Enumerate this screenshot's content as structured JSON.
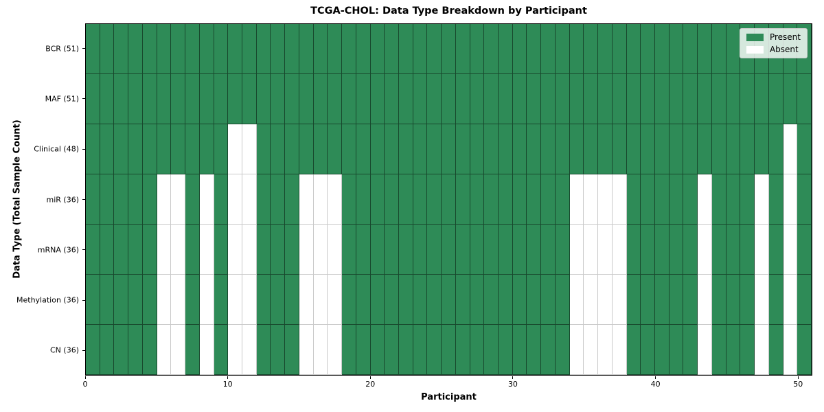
{
  "chart_data": {
    "type": "heatmap",
    "title": "TCGA-CHOL: Data Type Breakdown by Participant",
    "xlabel": "Participant",
    "ylabel": "Data Type (Total Sample Count)",
    "x_ticks": [
      0,
      10,
      20,
      30,
      40,
      50
    ],
    "x_range": [
      0,
      51
    ],
    "n_columns": 51,
    "cell_states": [
      "Present",
      "Absent"
    ],
    "rows": [
      {
        "label": "BCR (51)",
        "present_count": 51,
        "absent_participants": []
      },
      {
        "label": "MAF (51)",
        "present_count": 51,
        "absent_participants": []
      },
      {
        "label": "Clinical (48)",
        "present_count": 48,
        "absent_participants": [
          10,
          11,
          49
        ]
      },
      {
        "label": "miR (36)",
        "present_count": 36,
        "absent_participants": [
          5,
          6,
          8,
          10,
          11,
          15,
          16,
          17,
          34,
          35,
          36,
          37,
          43,
          47,
          49
        ]
      },
      {
        "label": "mRNA (36)",
        "present_count": 36,
        "absent_participants": [
          5,
          6,
          8,
          10,
          11,
          15,
          16,
          17,
          34,
          35,
          36,
          37,
          43,
          47,
          49
        ]
      },
      {
        "label": "Methylation (36)",
        "present_count": 36,
        "absent_participants": [
          5,
          6,
          8,
          10,
          11,
          15,
          16,
          17,
          34,
          35,
          36,
          37,
          43,
          47,
          49
        ]
      },
      {
        "label": "CN (36)",
        "present_count": 36,
        "absent_participants": [
          5,
          6,
          8,
          10,
          11,
          15,
          16,
          17,
          34,
          35,
          36,
          37,
          43,
          47,
          49
        ]
      }
    ],
    "legend": {
      "position": "upper right",
      "entries": [
        {
          "label": "Present",
          "color": "#2e8b57"
        },
        {
          "label": "Absent",
          "color": "#ffffff"
        }
      ]
    },
    "colors": {
      "present": "#2e8b57",
      "absent": "#ffffff",
      "frame": "#000000",
      "edge_on_present": "rgba(0,0,0,0.48)",
      "edge_on_absent": "#c9c9c9"
    }
  }
}
